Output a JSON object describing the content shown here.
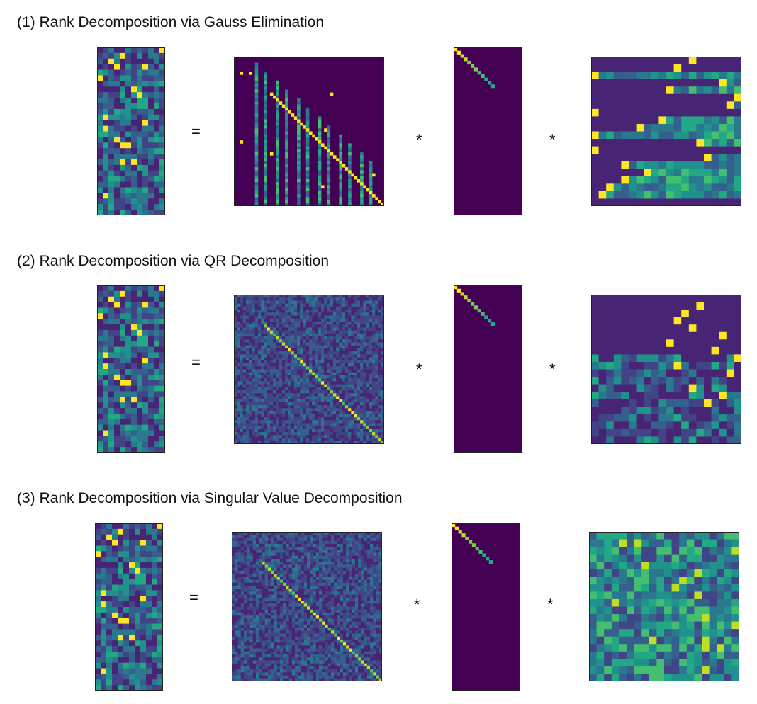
{
  "sections": [
    {
      "title": "(1) Rank Decomposition via Gauss Elimination",
      "op_equals": "=",
      "op_mult1": "*",
      "op_mult2": "*"
    },
    {
      "title": "(2) Rank Decomposition via QR Decomposition",
      "op_equals": "=",
      "op_mult1": "*",
      "op_mult2": "*"
    },
    {
      "title": "(3) Rank Decomposition via Singular Value Decomposition",
      "op_equals": "=",
      "op_mult1": "*",
      "op_mult2": "*"
    }
  ],
  "colors": {
    "viridis": [
      "#440154",
      "#482475",
      "#414487",
      "#355f8d",
      "#2a788e",
      "#21918c",
      "#22a884",
      "#44bf70",
      "#7ad151",
      "#bddf26",
      "#fde725"
    ],
    "background": "#ffffff",
    "frame": "#222222"
  }
}
